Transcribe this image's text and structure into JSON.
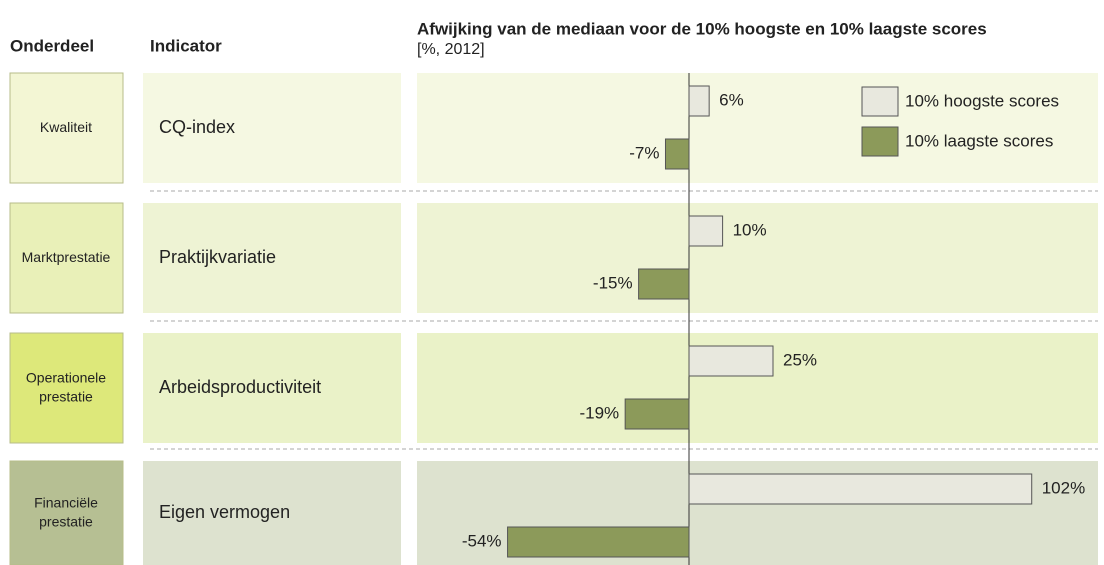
{
  "chart_data": {
    "type": "bar",
    "title": "Afwijking  van de mediaan voor de 10% hoogste en 10% laagste scores",
    "subtitle": "[%, 2012]",
    "column_headers": [
      "Onderdeel",
      "Indicator"
    ],
    "sections": [
      "Kwaliteit",
      "Marktprestatie",
      "Operationele prestatie",
      "Financiële prestatie"
    ],
    "categories": [
      "CQ-index",
      "Praktijkvariatie",
      "Arbeidsproductiviteit",
      "Eigen vermogen"
    ],
    "series": [
      {
        "name": "10% hoogste scores",
        "color": "#e8e8de",
        "values": [
          6,
          10,
          25,
          102
        ],
        "value_labels": [
          "6%",
          "10%",
          "25%",
          "102%"
        ]
      },
      {
        "name": "10% laagste scores",
        "color": "#8c9a5a",
        "values": [
          -7,
          -15,
          -19,
          -54
        ],
        "value_labels": [
          "-7%",
          "-15%",
          "-19%",
          "-54%"
        ]
      }
    ],
    "legend": "top-right"
  }
}
